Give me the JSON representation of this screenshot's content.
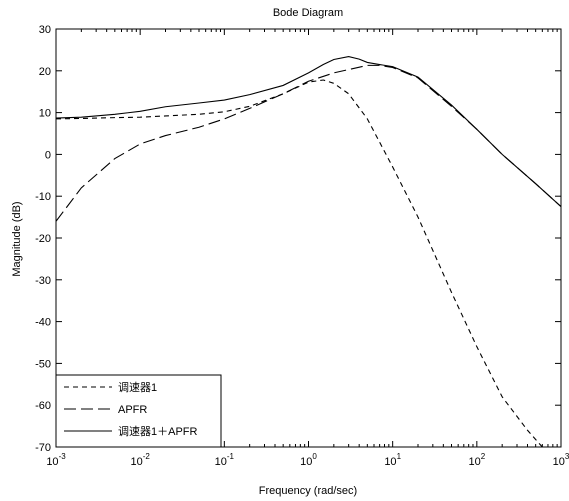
{
  "chart_data": {
    "type": "line",
    "title": "Bode Diagram",
    "xlabel": "Frequency  (rad/sec)",
    "ylabel": "Magnitude (dB)",
    "x_scale": "log",
    "xlim": [
      0.001,
      1000
    ],
    "ylim": [
      -70,
      30
    ],
    "x_ticks": [
      0.001,
      0.01,
      0.1,
      1,
      10,
      100,
      1000
    ],
    "x_tick_labels": [
      {
        "base": "10",
        "exp": "-3"
      },
      {
        "base": "10",
        "exp": "-2"
      },
      {
        "base": "10",
        "exp": "-1"
      },
      {
        "base": "10",
        "exp": "0"
      },
      {
        "base": "10",
        "exp": "1"
      },
      {
        "base": "10",
        "exp": "2"
      },
      {
        "base": "10",
        "exp": "3"
      }
    ],
    "y_ticks": [
      30,
      20,
      10,
      0,
      -10,
      -20,
      -30,
      -40,
      -50,
      -60,
      -70
    ],
    "y_tick_labels": [
      "30",
      "20",
      "10",
      "0",
      "-10",
      "-20",
      "-30",
      "-40",
      "-50",
      "-60",
      "-70"
    ],
    "grid": false,
    "legend_position": "bottom-left",
    "series": [
      {
        "name": "调速器1",
        "dash": "short-dash",
        "color": "#000000",
        "points": [
          [
            0.001,
            8.5
          ],
          [
            0.002,
            8.6
          ],
          [
            0.005,
            8.8
          ],
          [
            0.01,
            8.9
          ],
          [
            0.02,
            9.2
          ],
          [
            0.05,
            9.6
          ],
          [
            0.1,
            10.2
          ],
          [
            0.2,
            11.5
          ],
          [
            0.5,
            14.5
          ],
          [
            1.0,
            17.3
          ],
          [
            1.5,
            17.8
          ],
          [
            2.0,
            17.0
          ],
          [
            3.0,
            14.5
          ],
          [
            5.0,
            8.5
          ],
          [
            10,
            -3
          ],
          [
            20,
            -15
          ],
          [
            50,
            -33
          ],
          [
            100,
            -46
          ],
          [
            200,
            -58
          ],
          [
            400,
            -66
          ],
          [
            600,
            -70
          ]
        ]
      },
      {
        "name": "APFR",
        "dash": "long-dash",
        "color": "#000000",
        "points": [
          [
            0.001,
            -16
          ],
          [
            0.002,
            -8
          ],
          [
            0.005,
            -1
          ],
          [
            0.01,
            2.5
          ],
          [
            0.02,
            4.5
          ],
          [
            0.05,
            6.5
          ],
          [
            0.1,
            8.5
          ],
          [
            0.2,
            11
          ],
          [
            0.5,
            14.5
          ],
          [
            1.0,
            17.5
          ],
          [
            2.0,
            19.5
          ],
          [
            3.0,
            20.3
          ],
          [
            5.0,
            21.3
          ],
          [
            7.0,
            21.3
          ],
          [
            10,
            20.8
          ],
          [
            20,
            18.3
          ],
          [
            50,
            11.5
          ],
          [
            100,
            6
          ],
          [
            200,
            0
          ],
          [
            500,
            -7
          ],
          [
            1000,
            -12.5
          ]
        ]
      },
      {
        "name": "调速器1＋APFR",
        "dash": "solid",
        "color": "#000000",
        "points": [
          [
            0.001,
            8.7
          ],
          [
            0.002,
            8.9
          ],
          [
            0.005,
            9.6
          ],
          [
            0.01,
            10.3
          ],
          [
            0.02,
            11.4
          ],
          [
            0.05,
            12.3
          ],
          [
            0.1,
            13.0
          ],
          [
            0.2,
            14.3
          ],
          [
            0.5,
            16.5
          ],
          [
            1.0,
            19.5
          ],
          [
            1.5,
            21.5
          ],
          [
            2.0,
            22.7
          ],
          [
            3.0,
            23.4
          ],
          [
            4.0,
            22.8
          ],
          [
            5.0,
            22.0
          ],
          [
            7.0,
            21.5
          ],
          [
            10,
            21.0
          ],
          [
            20,
            18.5
          ],
          [
            50,
            11.8
          ],
          [
            100,
            6
          ],
          [
            200,
            0
          ],
          [
            500,
            -7
          ],
          [
            1000,
            -12.5
          ]
        ]
      }
    ]
  }
}
